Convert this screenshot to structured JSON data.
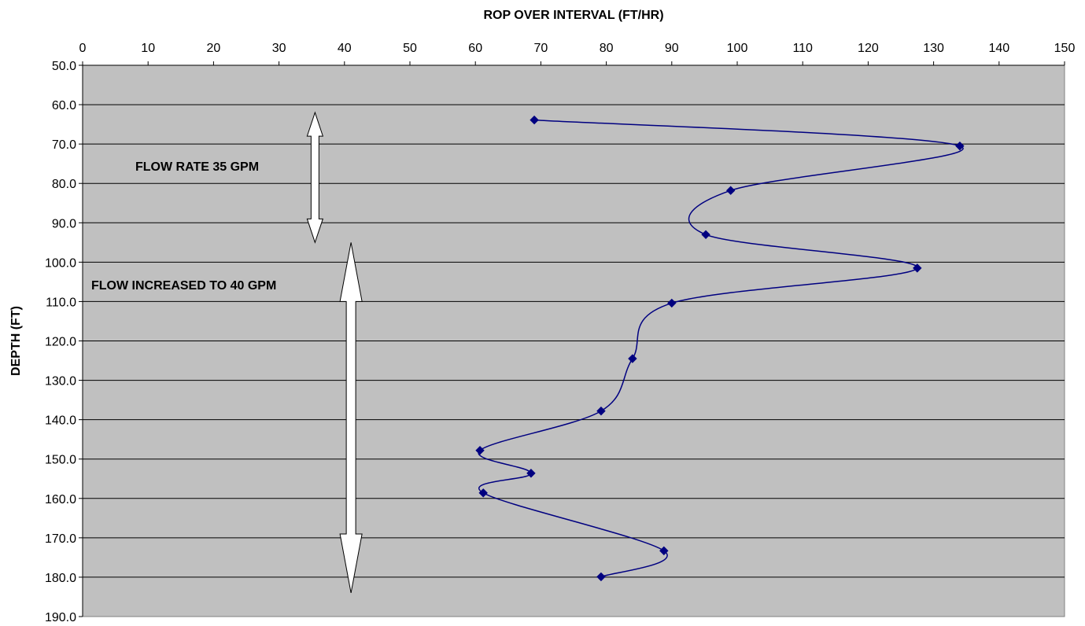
{
  "chart_data": {
    "type": "line",
    "xlabel": "ROP OVER INTERVAL (FT/HR)",
    "ylabel": "DEPTH (FT)",
    "xlim": [
      0,
      150
    ],
    "ylim": [
      50,
      190
    ],
    "y_inverted": true,
    "x_ticks": [
      "0",
      "10",
      "20",
      "30",
      "40",
      "50",
      "60",
      "70",
      "80",
      "90",
      "100",
      "110",
      "120",
      "130",
      "140",
      "150"
    ],
    "y_ticks": [
      "50.0",
      "60.0",
      "70.0",
      "80.0",
      "90.0",
      "100.0",
      "110.0",
      "120.0",
      "130.0",
      "140.0",
      "150.0",
      "160.0",
      "170.0",
      "180.0",
      "190.0"
    ],
    "grid": "horizontal",
    "plot_background": "#c0c0c0",
    "series": [
      {
        "color": "#000080",
        "marker": "diamond",
        "smooth": true,
        "x": [
          69,
          134,
          99,
          95.2,
          127.5,
          90,
          84,
          79.2,
          60.7,
          68.5,
          61.2,
          88.8,
          79.2
        ],
        "y": [
          63.9,
          70.5,
          81.8,
          93.0,
          101.5,
          110.4,
          124.5,
          137.8,
          147.8,
          153.6,
          158.6,
          173.3,
          179.9
        ]
      }
    ],
    "annotations": [
      {
        "text": "FLOW RATE 35 GPM",
        "arrow_x": 35.5,
        "arrow_y_from": 62,
        "arrow_y_to": 95
      },
      {
        "text": "FLOW INCREASED TO 40 GPM",
        "arrow_x": 41,
        "arrow_y_from": 95,
        "arrow_y_to": 184
      }
    ]
  }
}
